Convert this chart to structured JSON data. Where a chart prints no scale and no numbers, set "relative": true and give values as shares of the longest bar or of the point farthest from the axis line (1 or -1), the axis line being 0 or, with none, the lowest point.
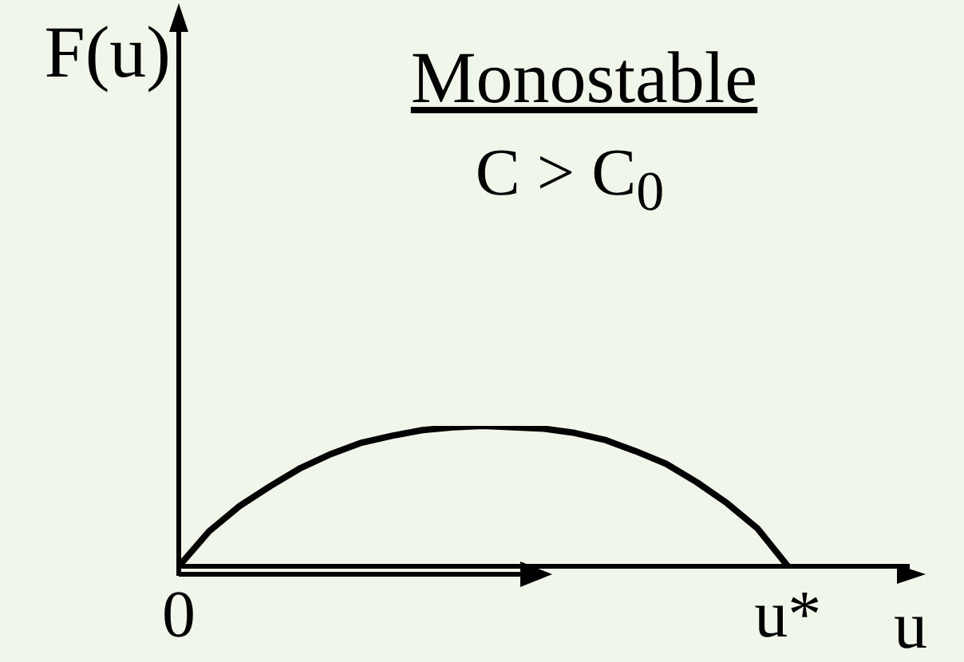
{
  "chart_data": {
    "type": "line",
    "title": "Monostable",
    "subtitle": "C > C$_{0}$",
    "xlabel": "u",
    "ylabel": "F(u)",
    "relative": true,
    "categories": [
      "0",
      null,
      null,
      null,
      null,
      null,
      null,
      null,
      null,
      null,
      null,
      null,
      null,
      null,
      null,
      null,
      null,
      null,
      null,
      null,
      "u*",
      null,
      null,
      null,
      null
    ],
    "series": [
      {
        "color": "#000000",
        "values": [
          0,
          0.25,
          0.43,
          0.57,
          0.7,
          0.8,
          0.88,
          0.93,
          0.97,
          0.99,
          1,
          0.99,
          0.98,
          0.95,
          0.9,
          0.82,
          0.73,
          0.6,
          0.45,
          0.27,
          0,
          null,
          null,
          null,
          null
        ]
      }
    ],
    "grid": false
  }
}
